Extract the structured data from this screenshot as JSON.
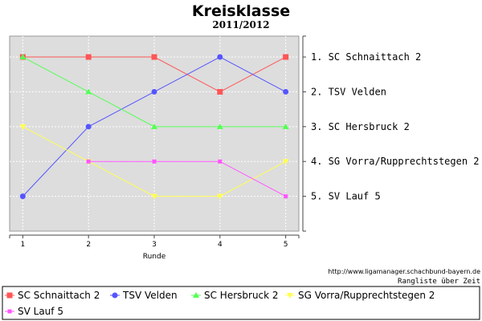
{
  "chart_data": {
    "type": "line",
    "title": "Kreisklasse",
    "subtitle": "2011/2012",
    "xlabel": "Runde",
    "ylabel": "",
    "x": [
      1,
      2,
      3,
      4,
      5
    ],
    "xlim": [
      0.8,
      5.2
    ],
    "ylim": [
      6,
      0.4
    ],
    "grid": true,
    "legend_position": "bottom",
    "rank_labels": [
      "1. SC Schnaittach 2",
      "2. TSV Velden",
      "3. SC Hersbruck 2",
      "4. SG Vorra/Rupprechtstegen 2",
      "5. SV Lauf 5"
    ],
    "series": [
      {
        "name": "SC Schnaittach 2",
        "values": [
          1,
          1,
          1,
          2,
          1
        ],
        "color": "#ff5555",
        "marker": "square"
      },
      {
        "name": "TSV Velden",
        "values": [
          5,
          3,
          2,
          1,
          2
        ],
        "color": "#5555ff",
        "marker": "circle"
      },
      {
        "name": "SC Hersbruck 2",
        "values": [
          1,
          2,
          3,
          3,
          3
        ],
        "color": "#55ff55",
        "marker": "triangle"
      },
      {
        "name": "SG Vorra/Rupprechtstegen 2",
        "values": [
          3,
          4,
          5,
          5,
          4
        ],
        "color": "#ffff55",
        "marker": "triangle-down"
      },
      {
        "name": "SV Lauf 5",
        "values": [
          null,
          4,
          4,
          4,
          5
        ],
        "color": "#ff55ff",
        "marker": "square-small"
      }
    ],
    "source_text": "http://www.ligamanager.schachbund-bayern.de",
    "note_text": "Rangliste über Zeit"
  }
}
